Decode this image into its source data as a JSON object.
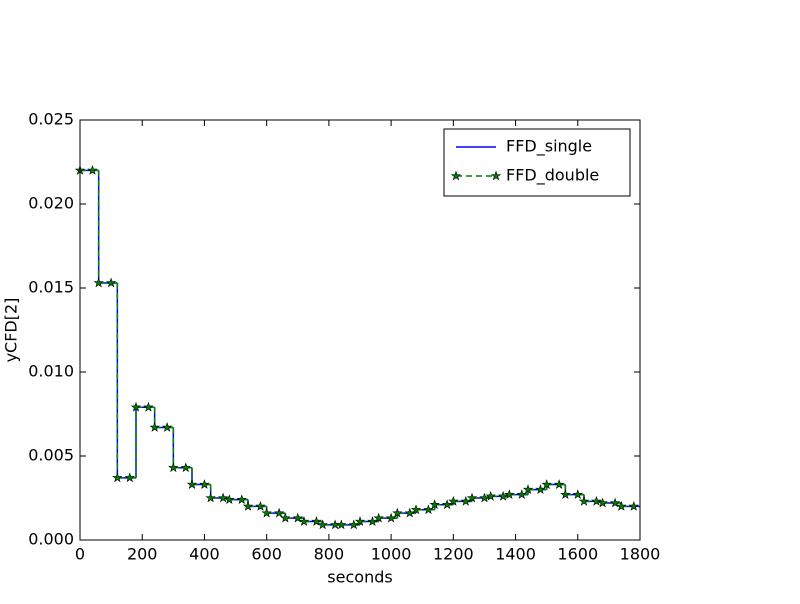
{
  "chart_data": {
    "type": "step",
    "xlabel": "seconds",
    "ylabel": "yCFD[2]",
    "xlim": [
      0,
      1800
    ],
    "xticks": [
      0,
      200,
      400,
      600,
      800,
      1000,
      1200,
      1400,
      1600,
      1800
    ],
    "ylim": [
      0,
      0.025
    ],
    "yticks": [
      {
        "value": 0,
        "label": "0.000"
      },
      {
        "value": 0.005,
        "label": "0.005"
      },
      {
        "value": 0.01,
        "label": "0.010"
      },
      {
        "value": 0.015,
        "label": "0.015"
      },
      {
        "value": 0.02,
        "label": "0.020"
      },
      {
        "value": 0.025,
        "label": "0.025"
      }
    ],
    "legend": "upper right",
    "series": [
      {
        "name": "FFD_single",
        "color": "#0000ff",
        "linestyle": "solid",
        "x": [
          0,
          60,
          120,
          180,
          240,
          300,
          360,
          420,
          480,
          540,
          600,
          660,
          720,
          780,
          840,
          900,
          960,
          1020,
          1080,
          1140,
          1200,
          1260,
          1320,
          1380,
          1440,
          1500,
          1560,
          1620,
          1680,
          1740,
          1800
        ],
        "values": [
          0.022,
          0.0153,
          0.0037,
          0.0079,
          0.0067,
          0.0043,
          0.0033,
          0.0025,
          0.0024,
          0.002,
          0.0016,
          0.0013,
          0.0011,
          0.0009,
          0.0009,
          0.0011,
          0.0013,
          0.0016,
          0.0018,
          0.0021,
          0.0023,
          0.0025,
          0.0026,
          0.0027,
          0.003,
          0.0033,
          0.0027,
          0.0023,
          0.0022,
          0.002,
          0.002
        ]
      },
      {
        "name": "FFD_double",
        "color": "#008000",
        "linestyle": "dashed",
        "marker": "star",
        "x": [
          0,
          40,
          60,
          100,
          120,
          160,
          180,
          220,
          240,
          280,
          300,
          340,
          360,
          400,
          420,
          460,
          480,
          520,
          540,
          580,
          600,
          640,
          660,
          700,
          720,
          760,
          780,
          820,
          840,
          880,
          900,
          940,
          960,
          1000,
          1020,
          1060,
          1080,
          1120,
          1140,
          1180,
          1200,
          1240,
          1260,
          1300,
          1320,
          1360,
          1380,
          1420,
          1440,
          1480,
          1500,
          1540,
          1560,
          1600,
          1620,
          1660,
          1680,
          1720,
          1740,
          1780
        ],
        "values": [
          0.022,
          0.022,
          0.0153,
          0.0153,
          0.0037,
          0.0037,
          0.0079,
          0.0079,
          0.0067,
          0.0067,
          0.0043,
          0.0043,
          0.0033,
          0.0033,
          0.0025,
          0.0025,
          0.0024,
          0.0024,
          0.002,
          0.002,
          0.0016,
          0.0016,
          0.0013,
          0.0013,
          0.0011,
          0.0011,
          0.0009,
          0.0009,
          0.0009,
          0.0009,
          0.0011,
          0.0011,
          0.0013,
          0.0013,
          0.0016,
          0.0016,
          0.0018,
          0.0018,
          0.0021,
          0.0021,
          0.0023,
          0.0023,
          0.0025,
          0.0025,
          0.0026,
          0.0026,
          0.0027,
          0.0027,
          0.003,
          0.003,
          0.0033,
          0.0033,
          0.0027,
          0.0027,
          0.0023,
          0.0023,
          0.0022,
          0.0022,
          0.002,
          0.002
        ]
      }
    ]
  }
}
